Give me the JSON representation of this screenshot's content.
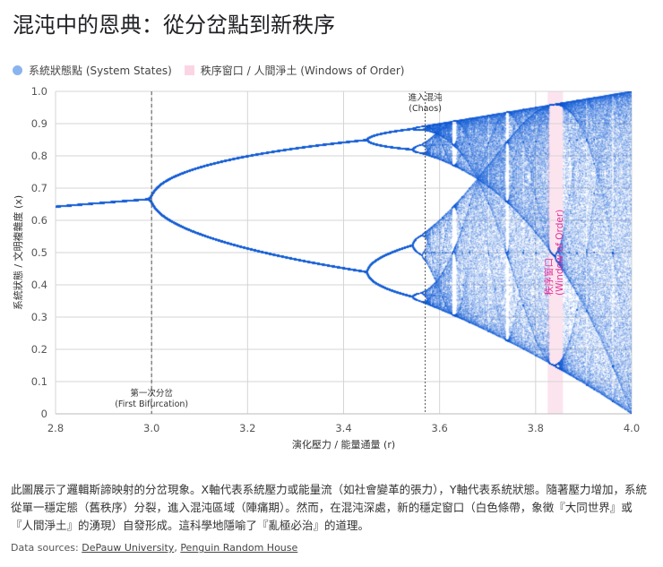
{
  "title": "混沌中的恩典：從分岔點到新秩序",
  "legend": [
    {
      "label": "系統狀態點 (System States)",
      "color": "#8ab4f0"
    },
    {
      "label": "秩序窗口 / 人間淨土 (Windows of Order)",
      "color": "#fcd5e5"
    }
  ],
  "chart_data": {
    "type": "scatter",
    "xlabel": "演化壓力 / 能量通量 (r)",
    "ylabel": "系統狀態 / 文明複雜度 (x)",
    "xlim": [
      2.8,
      4.0
    ],
    "ylim": [
      0,
      1.0
    ],
    "xticks": [
      "2.8",
      "3.0",
      "3.2",
      "3.4",
      "3.6",
      "3.8",
      "4.0"
    ],
    "yticks": [
      "0",
      "0.1",
      "0.2",
      "0.3",
      "0.4",
      "0.5",
      "0.6",
      "0.7",
      "0.8",
      "0.9",
      "1.0"
    ],
    "grid": true,
    "legend_placement": "top-left",
    "point_color": "#1a62d6",
    "series": [
      {
        "name": "系統狀態點 (System States)",
        "model": "logistic map bifurcation"
      }
    ],
    "annotations": [
      {
        "x": 3.0,
        "style": "dashed",
        "label1": "第一次分岔",
        "label2": "(First Bifurcation)",
        "position": "bottom"
      },
      {
        "x": 3.57,
        "style": "dotted",
        "label1": "進入混沌",
        "label2": "(Chaos)",
        "position": "top"
      }
    ],
    "window": {
      "x_range": [
        3.825,
        3.857
      ],
      "label": "秩序窗口",
      "label2": "(Window of Order)",
      "color": "#fce4ee",
      "text_color": "#e0309a"
    }
  },
  "caption": "此圖展示了邏輯斯諦映射的分岔現象。X軸代表系統壓力或能量流（如社會變革的張力），Y軸代表系統狀態。隨著壓力增加，系統從單一穩定態（舊秩序）分裂，進入混沌區域（陣痛期）。然而，在混沌深處，新的穩定窗口（白色條帶，象徵『大同世界』或『人間淨土』的湧現）自發形成。這科學地隱喻了『亂極必治』的道理。",
  "sources": {
    "prefix": "Data sources: ",
    "links": [
      "DePauw University",
      "Penguin Random House"
    ]
  }
}
